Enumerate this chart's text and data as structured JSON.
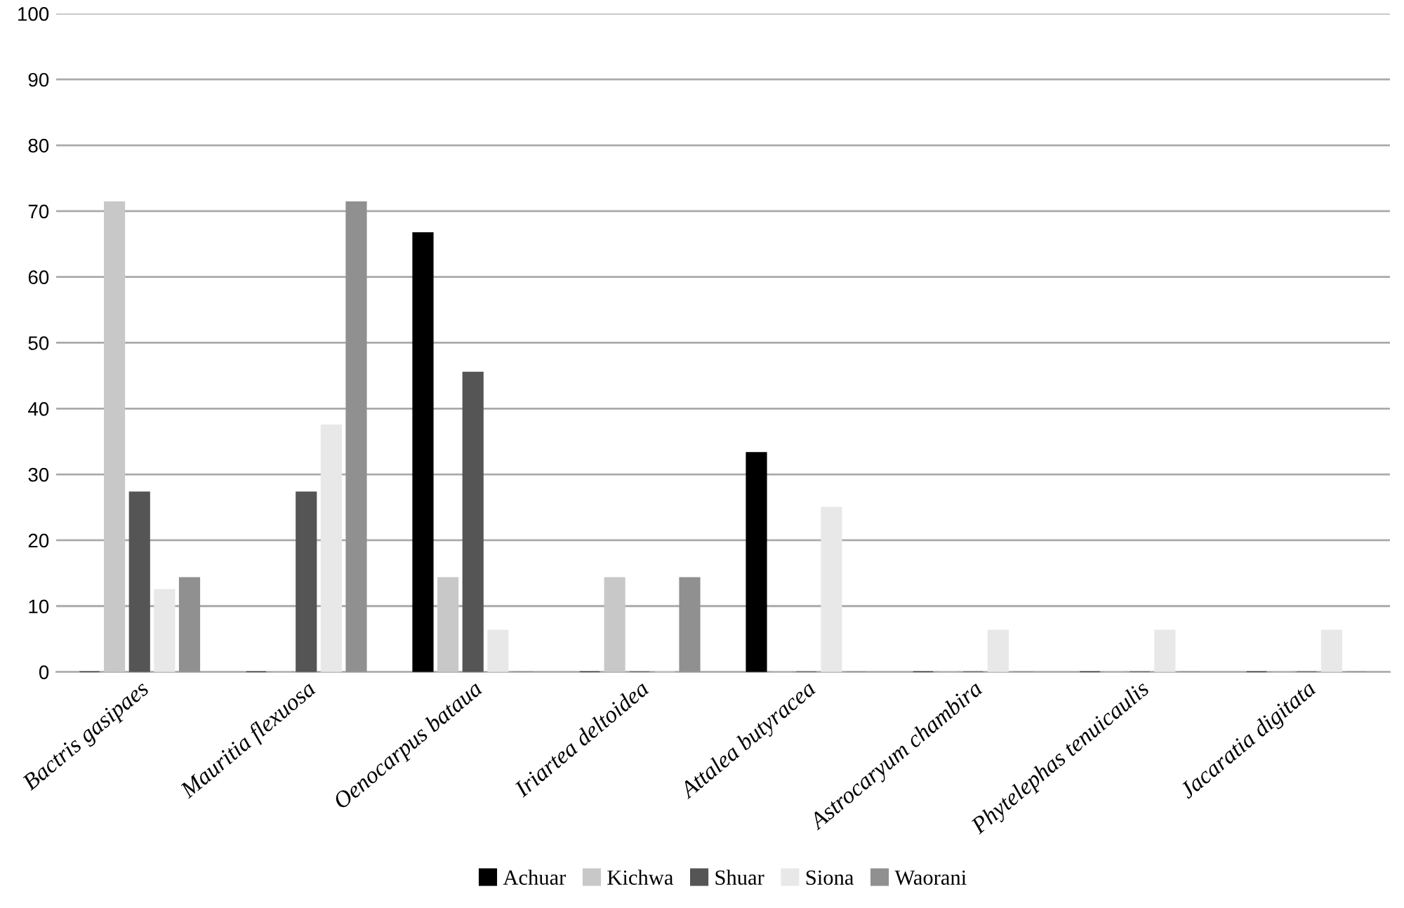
{
  "chart_data": {
    "type": "bar",
    "categories": [
      "Bactris gasipaes",
      "Mauritia flexuosa",
      "Oenocarpus bataua",
      "Iriartea deltoidea",
      "Attalea butyracea",
      "Astrocaryum chambira",
      "Phytelephas tenuicaulis",
      "Jacaratia digitata"
    ],
    "series": [
      {
        "name": "Achuar",
        "color": "#000000",
        "values": [
          0,
          0,
          66.7,
          0,
          33.3,
          0,
          0,
          0
        ]
      },
      {
        "name": "Kichwa",
        "color": "#c8c8c8",
        "values": [
          71.4,
          0,
          14.3,
          14.3,
          0,
          0,
          0,
          0
        ]
      },
      {
        "name": "Shuar",
        "color": "#555555",
        "values": [
          27.3,
          27.3,
          45.5,
          0,
          0,
          0,
          0,
          0
        ]
      },
      {
        "name": "Siona",
        "color": "#e8e8e8",
        "values": [
          12.5,
          37.5,
          6.3,
          0,
          25,
          6.3,
          6.3,
          6.3
        ]
      },
      {
        "name": "Waorani",
        "color": "#909090",
        "values": [
          14.3,
          71.4,
          0,
          14.3,
          0,
          0,
          0,
          0
        ]
      }
    ],
    "ylim": [
      0,
      100
    ],
    "yticks": [
      0,
      10,
      20,
      30,
      40,
      50,
      60,
      70,
      80,
      90,
      100
    ],
    "grid": "y",
    "legend": "bottom"
  }
}
